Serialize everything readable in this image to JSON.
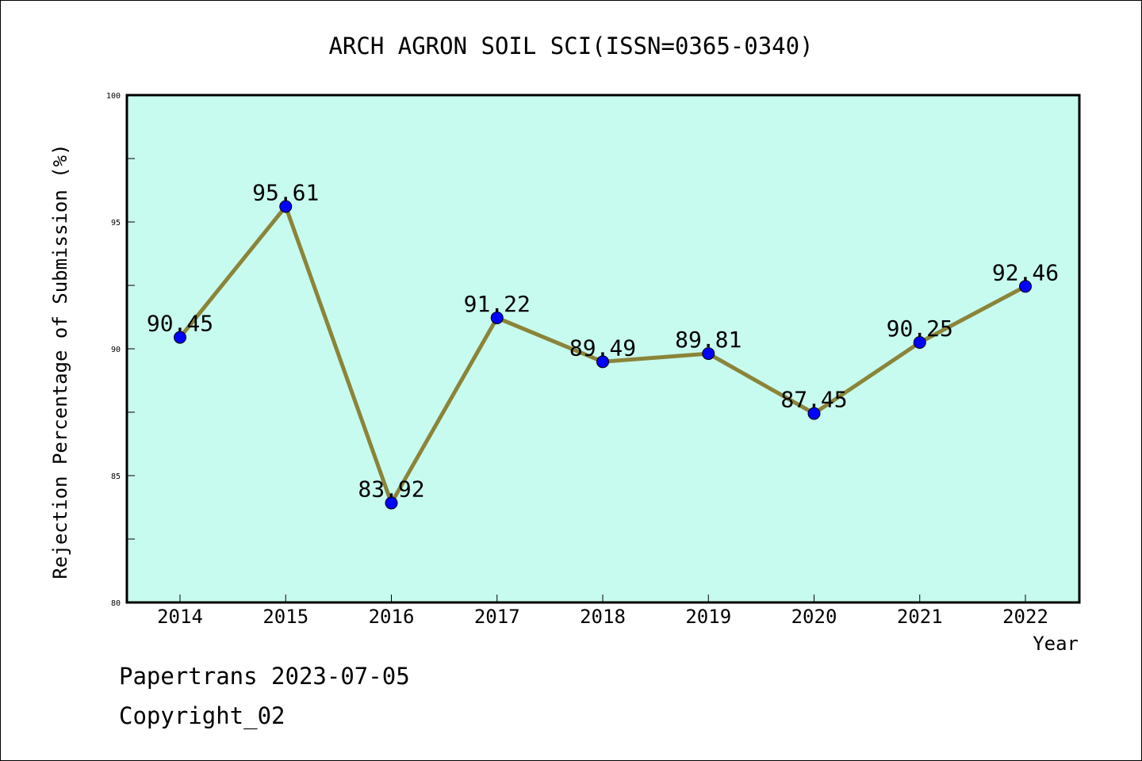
{
  "chart_data": {
    "type": "line",
    "title": "ARCH AGRON SOIL SCI(ISSN=0365-0340)",
    "xlabel": "Year",
    "ylabel": "Rejection Percentage of Submission (%)",
    "categories": [
      "2014",
      "2015",
      "2016",
      "2017",
      "2018",
      "2019",
      "2020",
      "2021",
      "2022"
    ],
    "values": [
      90.45,
      95.61,
      83.92,
      91.22,
      89.49,
      89.81,
      87.45,
      90.25,
      92.46
    ],
    "data_labels": [
      "90.45",
      "95.61",
      "83.92",
      "91.22",
      "89.49",
      "89.81",
      "87.45",
      "90.25",
      "92.46"
    ],
    "ylim": [
      80,
      100
    ],
    "yticks": [
      80,
      85,
      90,
      95,
      100
    ],
    "grid": false,
    "plot_background": "#c8fbef",
    "line_color": "#8b8439",
    "marker_color": "#0000ff"
  },
  "footer": {
    "line1": "Papertrans 2023-07-05",
    "line2": "Copyright_02"
  }
}
